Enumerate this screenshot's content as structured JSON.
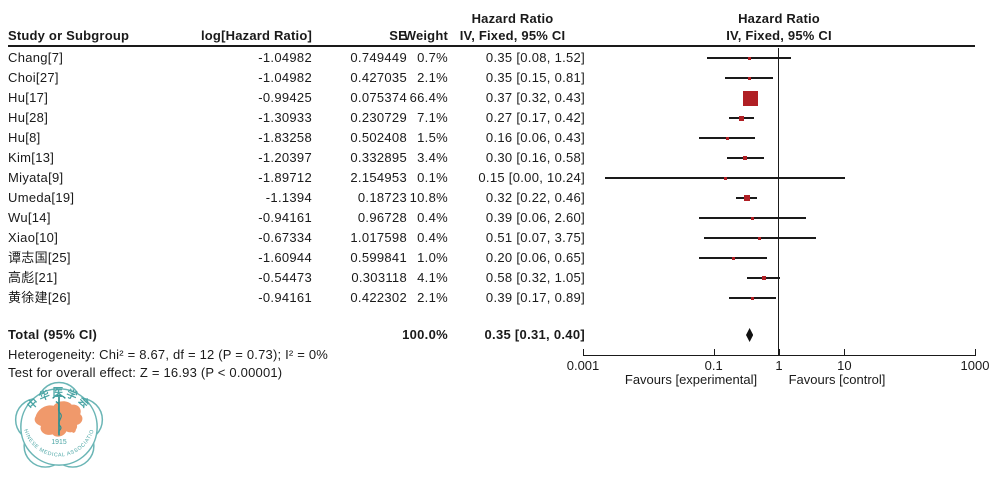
{
  "header": {
    "col_study": "Study or Subgroup",
    "col_loghr": "log[Hazard Ratio]",
    "col_se": "SE",
    "col_weight": "Weight",
    "col_ci_line1": "Hazard Ratio",
    "col_ci_line2": "IV, Fixed, 95% CI",
    "col_plot_line1": "Hazard Ratio",
    "col_plot_line2": "IV, Fixed, 95% CI"
  },
  "chart_data": {
    "type": "forest",
    "scale": "log",
    "effect_measure": "Hazard Ratio",
    "model": "IV, Fixed, 95% CI",
    "marker_color": "#B01F24",
    "line_color": "#1a1a1a",
    "studies": [
      {
        "study": "Chang[7]",
        "loghr": "-1.04982",
        "se": "0.749449",
        "weight": "0.7%",
        "weight_val": 0.7,
        "ci_text": "0.35 [0.08, 1.52]",
        "hr": 0.35,
        "lo": 0.08,
        "hi": 1.52
      },
      {
        "study": "Choi[27]",
        "loghr": "-1.04982",
        "se": "0.427035",
        "weight": "2.1%",
        "weight_val": 2.1,
        "ci_text": "0.35 [0.15, 0.81]",
        "hr": 0.35,
        "lo": 0.15,
        "hi": 0.81
      },
      {
        "study": "Hu[17]",
        "loghr": "-0.99425",
        "se": "0.075374",
        "weight": "66.4%",
        "weight_val": 66.4,
        "ci_text": "0.37 [0.32, 0.43]",
        "hr": 0.37,
        "lo": 0.32,
        "hi": 0.43
      },
      {
        "study": "Hu[28]",
        "loghr": "-1.30933",
        "se": "0.230729",
        "weight": "7.1%",
        "weight_val": 7.1,
        "ci_text": "0.27 [0.17, 0.42]",
        "hr": 0.27,
        "lo": 0.17,
        "hi": 0.42
      },
      {
        "study": "Hu[8]",
        "loghr": "-1.83258",
        "se": "0.502408",
        "weight": "1.5%",
        "weight_val": 1.5,
        "ci_text": "0.16 [0.06, 0.43]",
        "hr": 0.16,
        "lo": 0.06,
        "hi": 0.43
      },
      {
        "study": "Kim[13]",
        "loghr": "-1.20397",
        "se": "0.332895",
        "weight": "3.4%",
        "weight_val": 3.4,
        "ci_text": "0.30 [0.16, 0.58]",
        "hr": 0.3,
        "lo": 0.16,
        "hi": 0.58
      },
      {
        "study": "Miyata[9]",
        "loghr": "-1.89712",
        "se": "2.154953",
        "weight": "0.1%",
        "weight_val": 0.1,
        "ci_text": "0.15 [0.00, 10.24]",
        "hr": 0.15,
        "lo": 0.0,
        "lo_plot": 0.0022,
        "hi": 10.24
      },
      {
        "study": "Umeda[19]",
        "loghr": "-1.1394",
        "se": "0.18723",
        "weight": "10.8%",
        "weight_val": 10.8,
        "ci_text": "0.32 [0.22, 0.46]",
        "hr": 0.32,
        "lo": 0.22,
        "hi": 0.46
      },
      {
        "study": "Wu[14]",
        "loghr": "-0.94161",
        "se": "0.96728",
        "weight": "0.4%",
        "weight_val": 0.4,
        "ci_text": "0.39 [0.06, 2.60]",
        "hr": 0.39,
        "lo": 0.06,
        "hi": 2.6
      },
      {
        "study": "Xiao[10]",
        "loghr": "-0.67334",
        "se": "1.017598",
        "weight": "0.4%",
        "weight_val": 0.4,
        "ci_text": "0.51 [0.07, 3.75]",
        "hr": 0.51,
        "lo": 0.07,
        "hi": 3.75
      },
      {
        "study": "谭志国[25]",
        "loghr": "-1.60944",
        "se": "0.599841",
        "weight": "1.0%",
        "weight_val": 1.0,
        "ci_text": "0.20 [0.06, 0.65]",
        "hr": 0.2,
        "lo": 0.06,
        "hi": 0.65
      },
      {
        "study": "高彪[21]",
        "loghr": "-0.54473",
        "se": "0.303118",
        "weight": "4.1%",
        "weight_val": 4.1,
        "ci_text": "0.58 [0.32, 1.05]",
        "hr": 0.58,
        "lo": 0.32,
        "hi": 1.05
      },
      {
        "study": "黄徐建[26]",
        "loghr": "-0.94161",
        "se": "0.422302",
        "weight": "2.1%",
        "weight_val": 2.1,
        "ci_text": "0.39 [0.17, 0.89]",
        "hr": 0.39,
        "lo": 0.17,
        "hi": 0.89
      }
    ],
    "total": {
      "label": "Total (95% CI)",
      "weight": "100.0%",
      "ci_text": "0.35 [0.31, 0.40]",
      "hr": 0.35,
      "lo": 0.31,
      "hi": 0.4
    },
    "heterogeneity": "Heterogeneity: Chi² = 8.67, df = 12 (P = 0.73); I² = 0%",
    "overall_effect": "Test for overall effect: Z = 16.93 (P < 0.00001)",
    "axis": {
      "min": 0.001,
      "max": 1000,
      "null_line": 1,
      "ticks": [
        0.001,
        0.1,
        1,
        10,
        1000
      ],
      "labels": [
        "0.001",
        "0.1",
        "1",
        "10",
        "1000"
      ],
      "favours_left": "Favours [experimental]",
      "favours_right": "Favours [control]"
    }
  },
  "logo": {
    "org_cn": "中华医学会",
    "org_en": "CHINESE MEDICAL ASSOCIATION",
    "year": "1915"
  }
}
